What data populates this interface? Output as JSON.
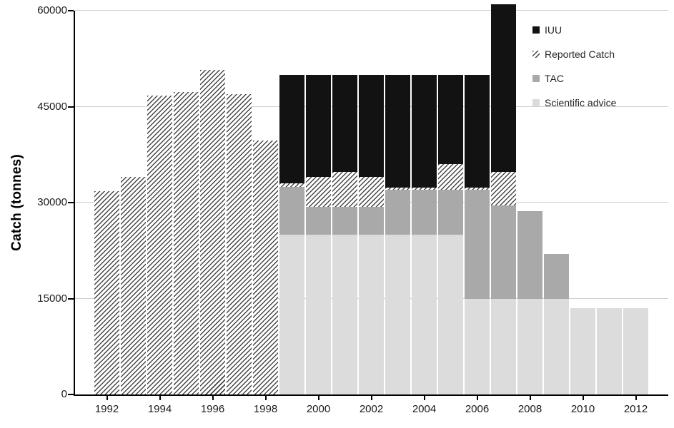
{
  "chart_data": {
    "type": "bar",
    "stacking": "overlay-cumulative-tops",
    "title": "",
    "xlabel": "",
    "ylabel": "Catch (tonnes)",
    "ylim": [
      0,
      60000
    ],
    "yticks": [
      0,
      15000,
      30000,
      45000,
      60000
    ],
    "ytick_labels": [
      "0",
      "15000",
      "30000",
      "45000",
      "60000"
    ],
    "categories": [
      1992,
      1993,
      1994,
      1995,
      1996,
      1997,
      1998,
      1999,
      2000,
      2001,
      2002,
      2003,
      2004,
      2005,
      2006,
      2007,
      2008,
      2009,
      2010,
      2011,
      2012
    ],
    "xtick_labels": [
      "1992",
      "1994",
      "1996",
      "1998",
      "2000",
      "2002",
      "2004",
      "2006",
      "2008",
      "2010",
      "2012"
    ],
    "grid": true,
    "legend_position": "top-right",
    "stack_order": [
      "Scientific advice",
      "TAC",
      "Reported Catch",
      "IUU"
    ],
    "note": "values are cumulative bar tops in tonnes; visible stack order bottom-to-top: Scientific advice, TAC, Reported Catch, IUU",
    "series": [
      {
        "name": "Scientific advice",
        "key": "scientific_advice",
        "style": "solid",
        "color": "#dcdcdc",
        "values": [
          null,
          null,
          null,
          null,
          null,
          null,
          null,
          25000,
          25000,
          25000,
          25000,
          25000,
          25000,
          25000,
          15000,
          15000,
          15000,
          15000,
          13500,
          13500,
          13500
        ]
      },
      {
        "name": "TAC",
        "key": "tac",
        "style": "solid",
        "color": "#a9a9a9",
        "values": [
          null,
          null,
          null,
          null,
          null,
          null,
          null,
          32500,
          29300,
          29300,
          29300,
          32000,
          32000,
          32000,
          32000,
          29500,
          28700,
          22000,
          null,
          null,
          null
        ]
      },
      {
        "name": "Reported Catch",
        "key": "reported_catch",
        "style": "hatch",
        "color": "#454545",
        "values": [
          31800,
          34000,
          46700,
          47300,
          50700,
          47000,
          39700,
          33000,
          34000,
          34800,
          34000,
          32300,
          32300,
          36000,
          32300,
          34800,
          null,
          null,
          null,
          null,
          null
        ]
      },
      {
        "name": "IUU",
        "key": "iuu",
        "style": "solid",
        "color": "#121212",
        "values": [
          null,
          null,
          null,
          null,
          null,
          null,
          null,
          50000,
          50000,
          50000,
          50000,
          50000,
          50000,
          50000,
          50000,
          61000,
          null,
          null,
          null,
          null,
          null
        ]
      }
    ],
    "legend": [
      {
        "label": "IUU",
        "style": "solid",
        "color": "#121212"
      },
      {
        "label": "Reported Catch",
        "style": "hatch",
        "color": "#454545"
      },
      {
        "label": "TAC",
        "style": "solid",
        "color": "#a9a9a9"
      },
      {
        "label": "Scientific advice",
        "style": "solid",
        "color": "#dcdcdc"
      }
    ]
  }
}
